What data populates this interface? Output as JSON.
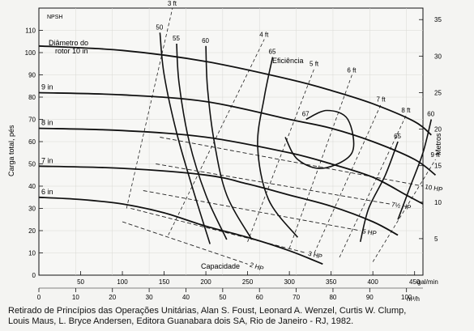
{
  "chart_data": {
    "type": "line",
    "npsh_label": "NPSH",
    "ylabel_left": "Carga total, pés",
    "ylabel_right": "Metros",
    "xlabel_bottom": "Capacidade",
    "x_top_unit": "m³/h",
    "x_bottom_unit": "gal/min",
    "diameter_label_line1": "Diâmetro do",
    "diameter_label_line2": "rotor 10 in",
    "efficiency_label": "Eficiência",
    "x_top_ticks": [
      0,
      10,
      20,
      30,
      40,
      50,
      60,
      70,
      80,
      90,
      100
    ],
    "x_bottom_ticks": [
      50,
      100,
      150,
      200,
      250,
      300,
      350,
      400,
      450
    ],
    "y_left_ticks": [
      0,
      10,
      20,
      30,
      40,
      50,
      60,
      70,
      80,
      90,
      100,
      110
    ],
    "y_right_ticks": [
      5,
      10,
      15,
      20,
      25,
      30,
      35
    ],
    "xlim_gpm": [
      0,
      460
    ],
    "ylim_ft": [
      0,
      120
    ],
    "head_curves": [
      {
        "name": "10 in",
        "x": [
          0,
          100,
          200,
          300,
          350,
          400,
          450,
          470
        ],
        "y": [
          103,
          101,
          96,
          88,
          83,
          77,
          69,
          63
        ]
      },
      {
        "name": "9 in",
        "x": [
          0,
          100,
          200,
          300,
          350,
          400,
          450,
          475
        ],
        "y": [
          82,
          81,
          78,
          70,
          66,
          60,
          52,
          45
        ]
      },
      {
        "name": "8 in",
        "x": [
          0,
          100,
          200,
          300,
          350,
          400,
          440,
          460
        ],
        "y": [
          66,
          65,
          62,
          55,
          50,
          44,
          36,
          32
        ]
      },
      {
        "name": "7 in",
        "x": [
          0,
          100,
          200,
          250,
          300,
          350,
          400,
          430
        ],
        "y": [
          49,
          48,
          45,
          41,
          36,
          31,
          24,
          18
        ]
      },
      {
        "name": "6 in",
        "x": [
          0,
          50,
          100,
          150,
          200,
          250,
          300,
          340
        ],
        "y": [
          35,
          34,
          32,
          28,
          22,
          17,
          11,
          5
        ]
      }
    ],
    "efficiency_curves": [
      {
        "name": "50",
        "x": [
          145,
          150,
          165,
          185,
          205
        ],
        "y": [
          109,
          90,
          64,
          38,
          14
        ]
      },
      {
        "name": "55",
        "x": [
          165,
          168,
          180,
          200,
          225
        ],
        "y": [
          104,
          86,
          60,
          36,
          16
        ]
      },
      {
        "name": "60",
        "x": [
          200,
          202,
          210,
          225,
          255
        ],
        "y": [
          103,
          84,
          60,
          36,
          16
        ]
      },
      {
        "name": "65",
        "x": [
          280,
          270,
          262,
          275,
          310
        ],
        "y": [
          98,
          80,
          58,
          34,
          17
        ]
      },
      {
        "name": "67",
        "x": [
          320,
          345,
          370,
          375,
          340,
          310,
          295
        ],
        "y": [
          70,
          74,
          70,
          55,
          48,
          52,
          62
        ]
      },
      {
        "name": "65 (direita)",
        "x": [
          430,
          415,
          395,
          385
        ],
        "y": [
          60,
          45,
          30,
          15
        ]
      },
      {
        "name": "60 (direita)",
        "x": [
          470,
          460,
          445,
          430
        ],
        "y": [
          70,
          55,
          40,
          25
        ]
      }
    ],
    "npsh_lines": [
      {
        "name": "3 ft",
        "x": [
          105,
          160
        ],
        "y": [
          30,
          120
        ]
      },
      {
        "name": "4 ft",
        "x": [
          155,
          270
        ],
        "y": [
          18,
          106
        ]
      },
      {
        "name": "5 ft",
        "x": [
          250,
          330
        ],
        "y": [
          15,
          93
        ]
      },
      {
        "name": "6 ft",
        "x": [
          300,
          375
        ],
        "y": [
          12,
          90
        ]
      },
      {
        "name": "7 ft",
        "x": [
          330,
          410
        ],
        "y": [
          10,
          77
        ]
      },
      {
        "name": "8 ft",
        "x": [
          360,
          440
        ],
        "y": [
          8,
          72
        ]
      },
      {
        "name": "9 ft",
        "x": [
          400,
          475
        ],
        "y": [
          6,
          52
        ]
      }
    ],
    "hp_lines": [
      {
        "name": "2 HP",
        "x": [
          100,
          250
        ],
        "y": [
          24,
          5
        ]
      },
      {
        "name": "3 HP",
        "x": [
          110,
          320
        ],
        "y": [
          30,
          10
        ]
      },
      {
        "name": "5 HP",
        "x": [
          125,
          385
        ],
        "y": [
          38,
          20
        ]
      },
      {
        "name": "7½ HP",
        "x": [
          140,
          420
        ],
        "y": [
          50,
          32
        ]
      },
      {
        "name": "10 HP",
        "x": [
          145,
          460
        ],
        "y": [
          62,
          40
        ]
      }
    ]
  },
  "caption": {
    "line1": "Retirado de Princípios das Operações Unitárias, Alan S. Foust, Leonard A. Wenzel, Curtis W. Clump,",
    "line2": "Louis Maus, L. Bryce Andersen, Editora Guanabara dois SA, Rio de Janeiro - RJ, 1982."
  }
}
